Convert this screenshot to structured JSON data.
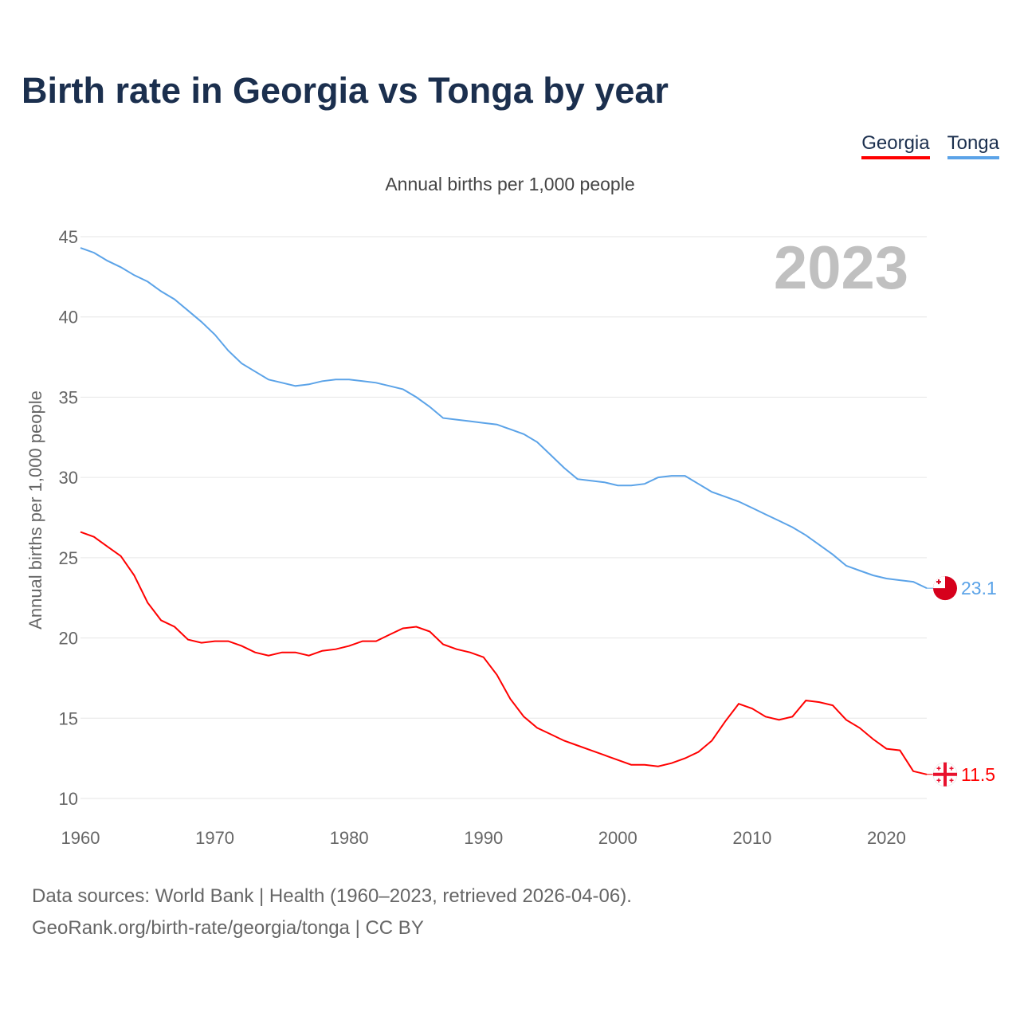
{
  "title": "Birth rate in Georgia vs Tonga by year",
  "subtitle": "Annual births per 1,000 people",
  "footer": {
    "line1": "Data sources: World Bank | Health (1960–2023, retrieved 2026-04-06).",
    "line2": "GeoRank.org/birth-rate/georgia/tonga | CC BY"
  },
  "chart_data": {
    "type": "line",
    "title": "Birth rate in Georgia vs Tonga by year",
    "subtitle": "Annual births per 1,000 people",
    "xlabel": "",
    "ylabel": "Annual births per 1,000 people",
    "year_watermark": "2023",
    "xlim": [
      1960,
      2023
    ],
    "ylim": [
      10,
      45
    ],
    "xticks": [
      1960,
      1970,
      1980,
      1990,
      2000,
      2010,
      2020
    ],
    "yticks": [
      10,
      15,
      20,
      25,
      30,
      35,
      40,
      45
    ],
    "grid": true,
    "legend_position": "top-right",
    "x_start": 1960,
    "series": [
      {
        "name": "Georgia",
        "color": "#ff0000",
        "end_label": "11.5",
        "flag_icon": "georgia-flag-icon",
        "values": [
          26.6,
          26.3,
          25.7,
          25.1,
          23.9,
          22.2,
          21.1,
          20.7,
          19.9,
          19.7,
          19.8,
          19.8,
          19.5,
          19.1,
          18.9,
          19.1,
          19.1,
          18.9,
          19.2,
          19.3,
          19.5,
          19.8,
          19.8,
          20.2,
          20.6,
          20.7,
          20.4,
          19.6,
          19.3,
          19.1,
          18.8,
          17.7,
          16.2,
          15.1,
          14.4,
          14.0,
          13.6,
          13.3,
          13.0,
          12.7,
          12.4,
          12.1,
          12.1,
          12.0,
          12.2,
          12.5,
          12.9,
          13.6,
          14.8,
          15.9,
          15.6,
          15.1,
          14.9,
          15.1,
          16.1,
          16.0,
          15.8,
          14.9,
          14.4,
          13.7,
          13.1,
          13.0,
          11.7,
          11.5
        ]
      },
      {
        "name": "Tonga",
        "color": "#5ba3e8",
        "end_label": "23.1",
        "flag_icon": "tonga-flag-icon",
        "values": [
          44.3,
          44.0,
          43.5,
          43.1,
          42.6,
          42.2,
          41.6,
          41.1,
          40.4,
          39.7,
          38.9,
          37.9,
          37.1,
          36.6,
          36.1,
          35.9,
          35.7,
          35.8,
          36.0,
          36.1,
          36.1,
          36.0,
          35.9,
          35.7,
          35.5,
          35.0,
          34.4,
          33.7,
          33.6,
          33.5,
          33.4,
          33.3,
          33.0,
          32.7,
          32.2,
          31.4,
          30.6,
          29.9,
          29.8,
          29.7,
          29.5,
          29.5,
          29.6,
          30.0,
          30.1,
          30.1,
          29.6,
          29.1,
          28.8,
          28.5,
          28.1,
          27.7,
          27.3,
          26.9,
          26.4,
          25.8,
          25.2,
          24.5,
          24.2,
          23.9,
          23.7,
          23.6,
          23.5,
          23.1
        ]
      }
    ]
  }
}
